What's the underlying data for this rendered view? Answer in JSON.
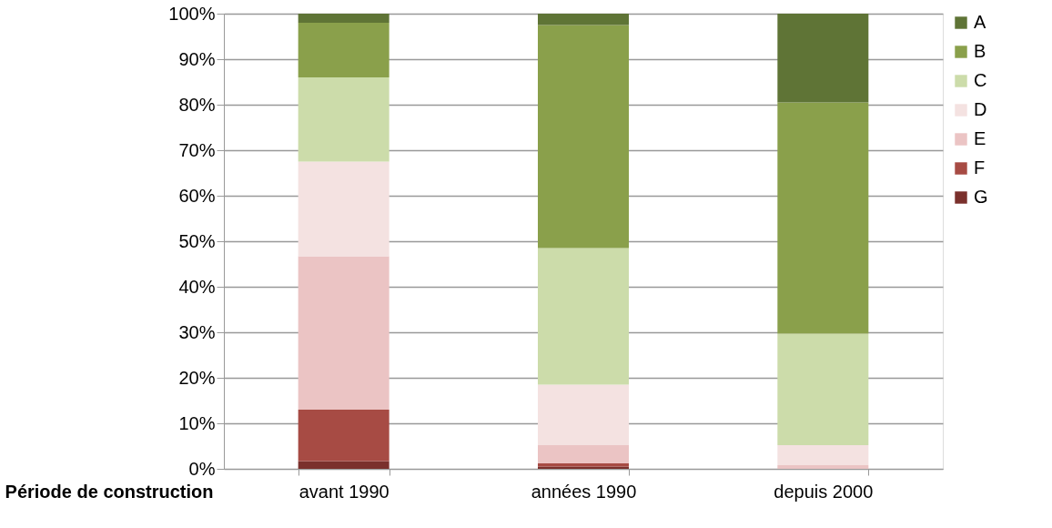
{
  "chart_data": {
    "type": "bar",
    "stacked": true,
    "xlabel": "Période de construction",
    "categories": [
      "avant 1990",
      "années 1990",
      "depuis 2000"
    ],
    "series": [
      {
        "name": "G",
        "color": "#7a302c",
        "values": [
          1.7,
          0.5,
          0
        ]
      },
      {
        "name": "F",
        "color": "#a74b44",
        "values": [
          11.3,
          0.7,
          0
        ]
      },
      {
        "name": "E",
        "color": "#ebc4c4",
        "values": [
          33.7,
          4.0,
          0.8
        ]
      },
      {
        "name": "D",
        "color": "#f4e2e1",
        "values": [
          20.8,
          13.3,
          4.4
        ]
      },
      {
        "name": "C",
        "color": "#ccdcaa",
        "values": [
          18.5,
          30.0,
          24.5
        ]
      },
      {
        "name": "B",
        "color": "#8aa04b",
        "values": [
          12.0,
          49.0,
          50.8
        ]
      },
      {
        "name": "A",
        "color": "#5f7436",
        "values": [
          2.0,
          2.5,
          19.5
        ]
      }
    ],
    "ylim": [
      0,
      100
    ],
    "yticks": [
      {
        "value": 0,
        "label": "0%"
      },
      {
        "value": 10,
        "label": "10%"
      },
      {
        "value": 20,
        "label": "20%"
      },
      {
        "value": 30,
        "label": "30%"
      },
      {
        "value": 40,
        "label": "40%"
      },
      {
        "value": 50,
        "label": "50%"
      },
      {
        "value": 60,
        "label": "60%"
      },
      {
        "value": 70,
        "label": "70%"
      },
      {
        "value": 80,
        "label": "80%"
      },
      {
        "value": 90,
        "label": "90%"
      },
      {
        "value": 100,
        "label": "100%"
      }
    ],
    "grid": "y",
    "legend": "right"
  }
}
